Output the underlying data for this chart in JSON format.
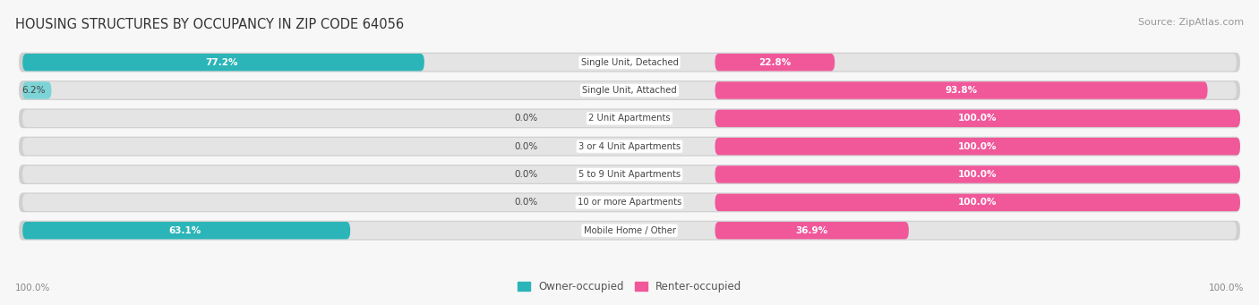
{
  "title": "HOUSING STRUCTURES BY OCCUPANCY IN ZIP CODE 64056",
  "source": "Source: ZipAtlas.com",
  "categories": [
    "Single Unit, Detached",
    "Single Unit, Attached",
    "2 Unit Apartments",
    "3 or 4 Unit Apartments",
    "5 to 9 Unit Apartments",
    "10 or more Apartments",
    "Mobile Home / Other"
  ],
  "owner_pct": [
    77.2,
    6.2,
    0.0,
    0.0,
    0.0,
    0.0,
    63.1
  ],
  "renter_pct": [
    22.8,
    93.8,
    100.0,
    100.0,
    100.0,
    100.0,
    36.9
  ],
  "owner_color_strong": "#2bb5b8",
  "owner_color_light": "#7dd4d6",
  "renter_color_strong": "#f0589a",
  "renter_color_light": "#f8aec8",
  "bg_color": "#f7f7f7",
  "bar_bg_color": "#e4e4e4",
  "bar_shadow_color": "#d0d0d0",
  "title_color": "#333333",
  "source_color": "#999999",
  "label_text_color": "#444444",
  "white_text": "#ffffff",
  "axis_label_color": "#888888",
  "legend_label_color": "#555555"
}
